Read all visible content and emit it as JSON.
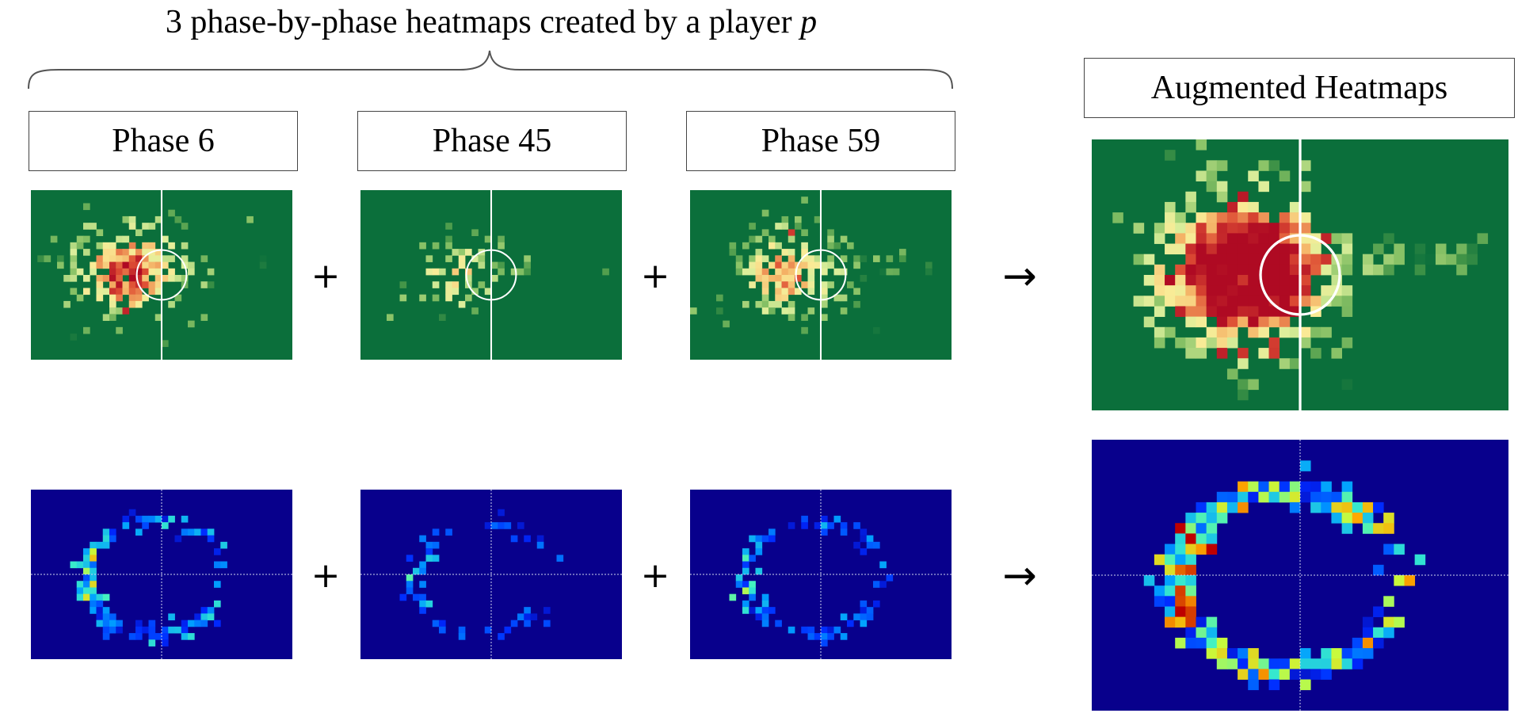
{
  "title": {
    "text": "3 phase-by-phase heatmaps created by a player",
    "italic_var": "p"
  },
  "phases": [
    {
      "label": "Phase 6",
      "seed": 11,
      "spread": 1.0,
      "density": 1.0,
      "red": 0.06
    },
    {
      "label": "Phase 45",
      "seed": 45,
      "spread": 0.8,
      "density": 0.55,
      "red": 0.0
    },
    {
      "label": "Phase 59",
      "seed": 59,
      "spread": 0.95,
      "density": 0.8,
      "red": 0.02
    }
  ],
  "augmented": {
    "label": "Augmented Heatmaps",
    "seed": 7,
    "spread": 1.0,
    "density": 1.7,
    "red": 0.25
  },
  "operators": {
    "plus": "+",
    "arrow": "→"
  },
  "colors": {
    "pitch_green": "#0b6f3b",
    "pitch_line": "#ffffff",
    "blue_bg": "#08008c",
    "divider_line": "#cfd4ee"
  }
}
